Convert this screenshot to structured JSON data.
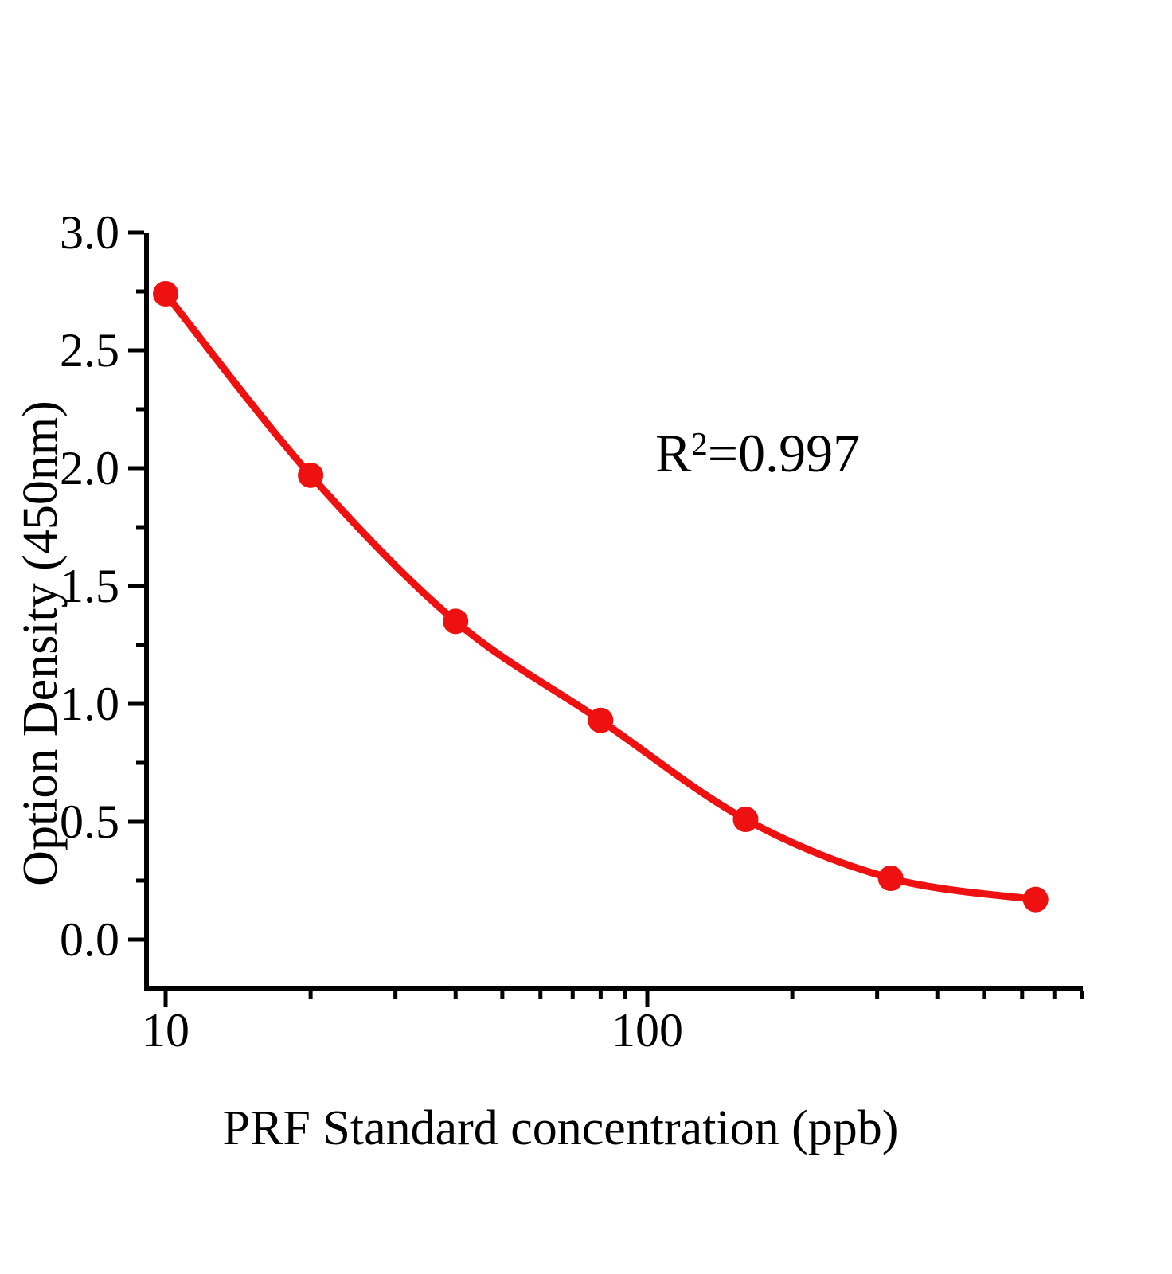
{
  "chart_data": {
    "type": "scatter",
    "title": "",
    "xlabel": "PRF Standard concentration（ppb）",
    "ylabel": "Option Density（450nm）",
    "annotation": {
      "base": "R",
      "exponent": "2",
      "rest": "=0.997"
    },
    "x": [
      10,
      20,
      40,
      80,
      160,
      320,
      640
    ],
    "y": [
      2.74,
      1.97,
      1.35,
      0.93,
      0.51,
      0.26,
      0.17
    ],
    "fit_curve": "smooth exponential-decay fit drawn through the data points",
    "x_axis": {
      "scale": "log",
      "lim": [
        9,
        800
      ],
      "major_ticks": [
        10,
        100
      ],
      "tick_labels": [
        "10",
        "100"
      ],
      "minor_ticks": [
        20,
        30,
        40,
        50,
        60,
        70,
        80,
        90,
        200,
        300,
        400,
        500,
        600,
        700,
        800
      ]
    },
    "y_axis": {
      "scale": "linear",
      "lim": [
        -0.2,
        3.0
      ],
      "major_ticks": [
        0,
        0.5,
        1,
        1.5,
        2,
        2.5,
        3
      ],
      "tick_labels": [
        "0.0",
        "0.5",
        "1.0",
        "1.5",
        "2.0",
        "2.5",
        "3.0"
      ],
      "minor_ticks": [
        0.25,
        0.75,
        1.25,
        1.75,
        2.25,
        2.75
      ]
    },
    "grid": false,
    "legend": "none",
    "point_color": "#ee1111",
    "curve_color": "#ee1111",
    "axis_color": "#000000"
  }
}
